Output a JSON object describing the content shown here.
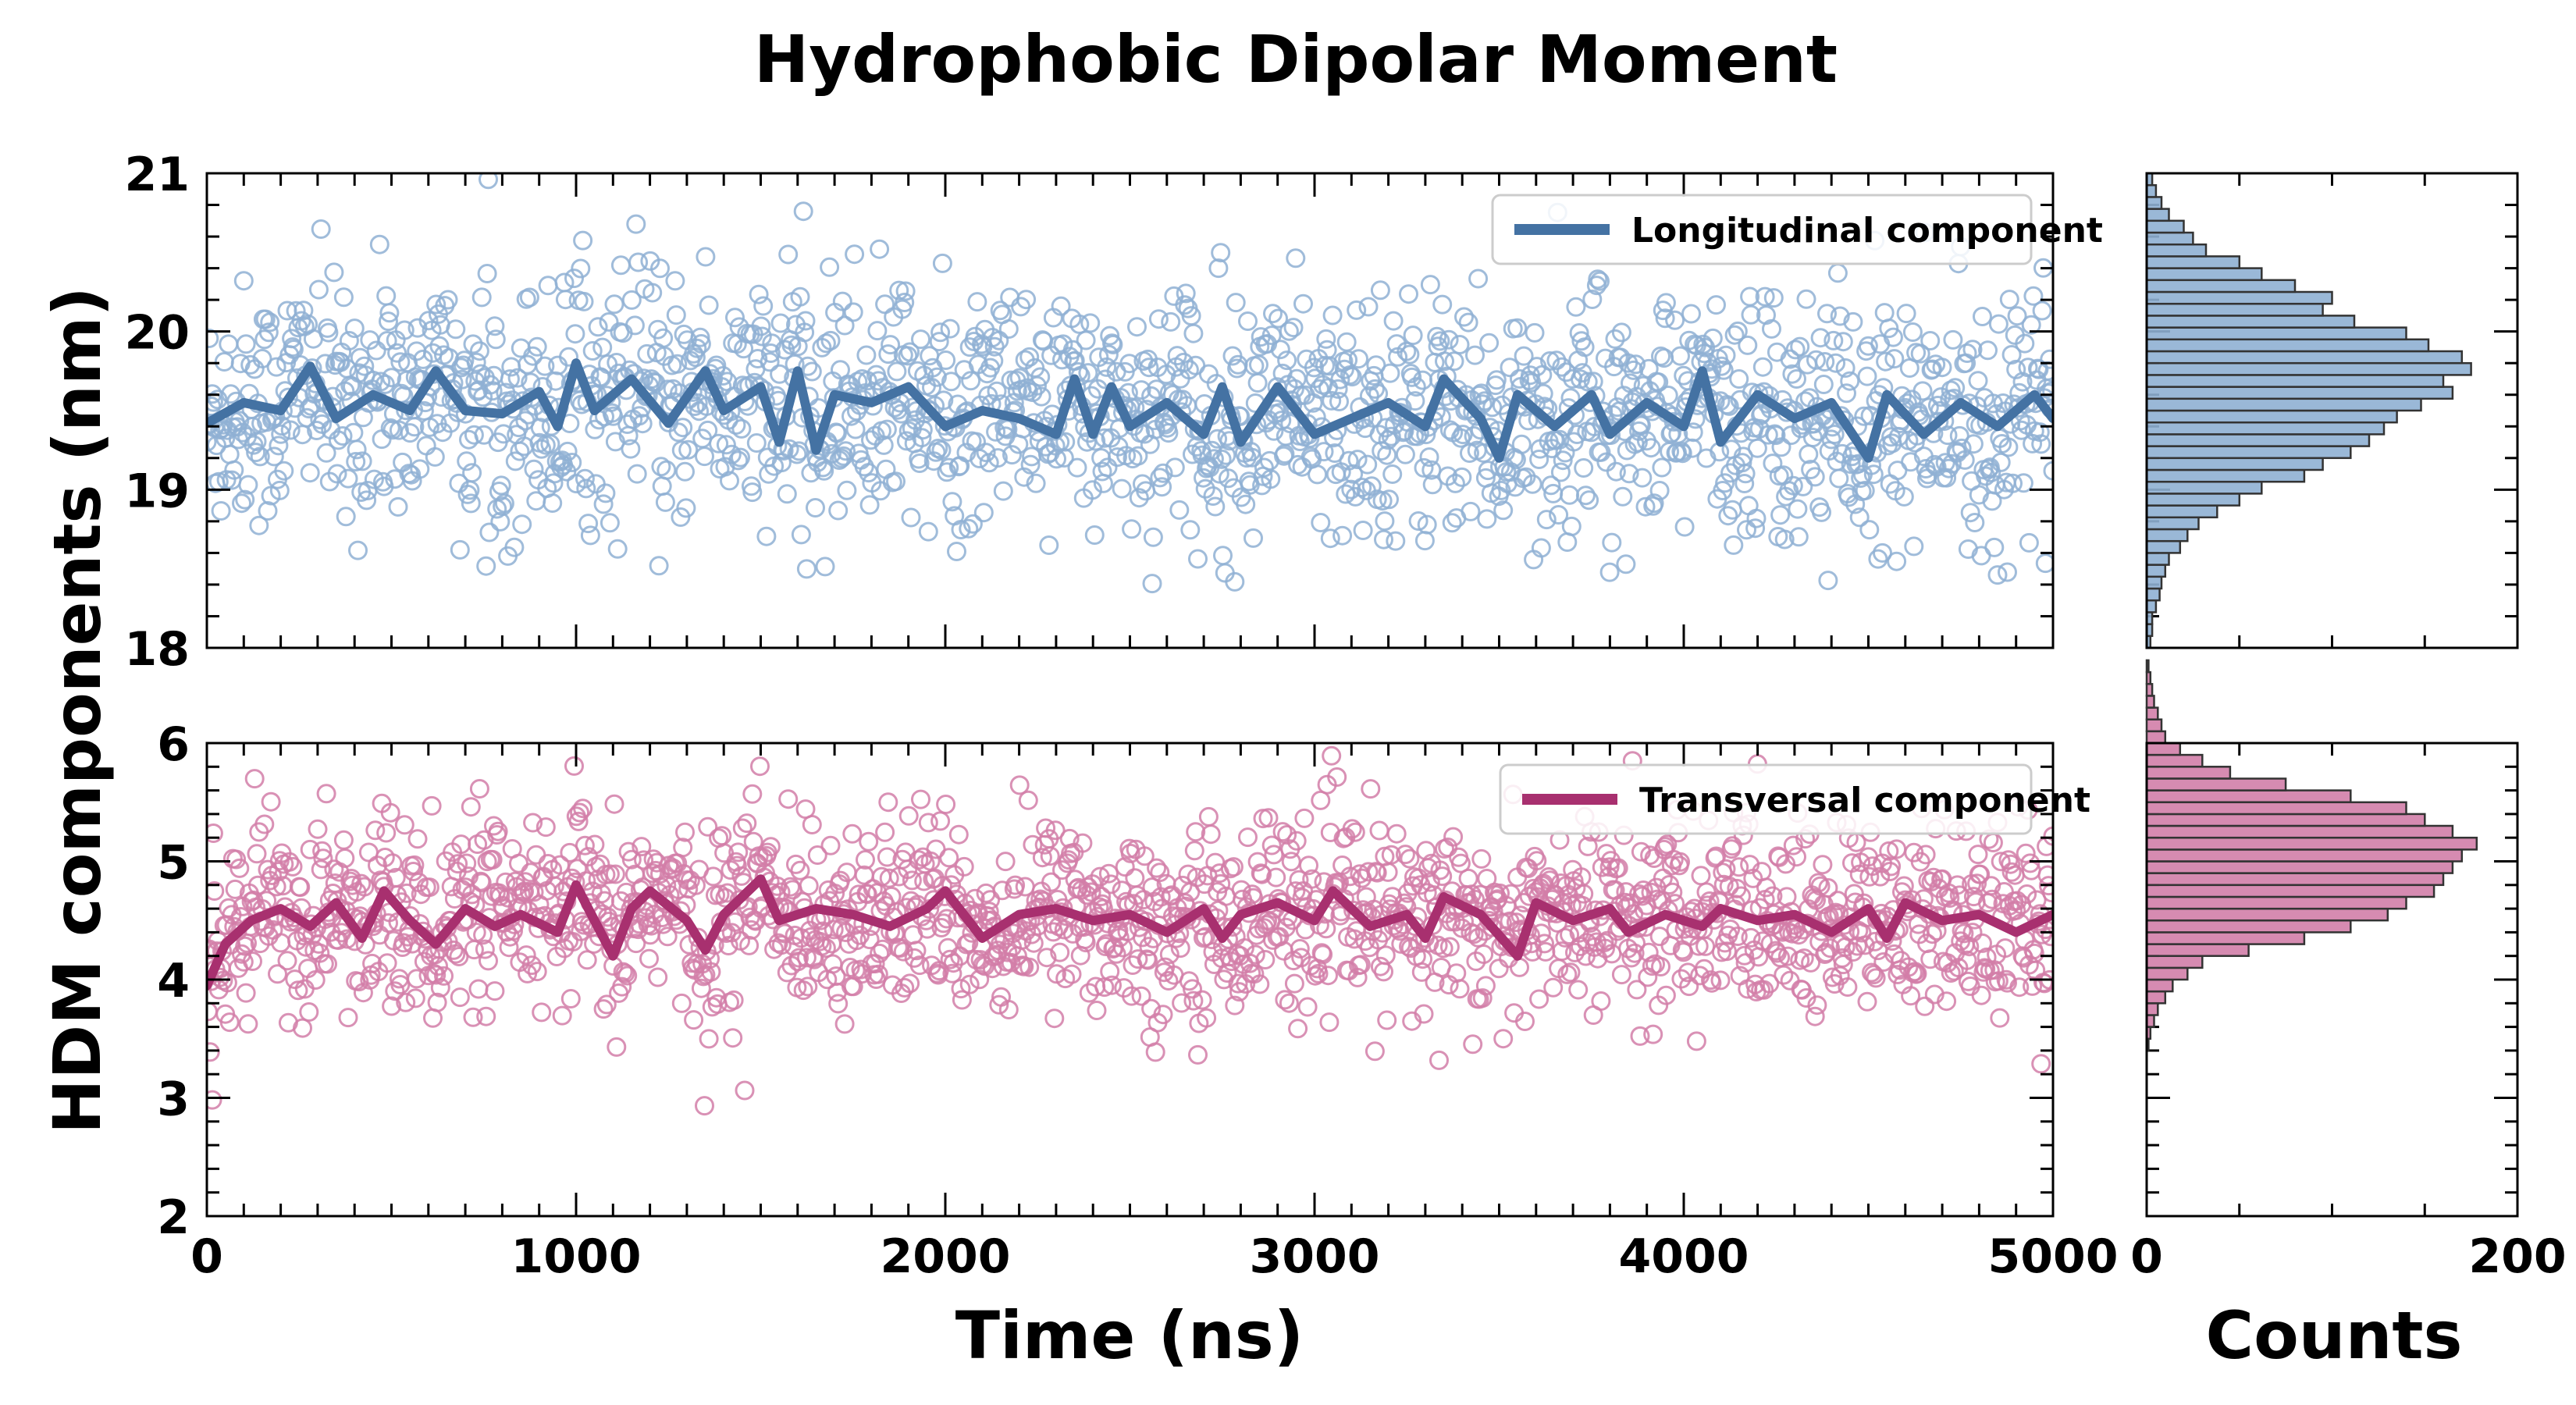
{
  "chart_data": [
    {
      "type": "scatter",
      "panel": "top",
      "title": "Hydrophobic Dipolar Moment",
      "xlabel": "Time (ns)",
      "ylabel": "HDM components (nm)",
      "xlim": [
        0,
        5000
      ],
      "ylim": [
        18,
        21
      ],
      "x_ticks": [
        "0",
        "1000",
        "2000",
        "3000",
        "4000",
        "5000"
      ],
      "y_ticks": [
        "18",
        "19",
        "20",
        "21"
      ],
      "show_x_ticklabels": false,
      "legend_position": "top-right",
      "series": [
        {
          "name": "Longitudinal component",
          "kind": "scatter+running-average",
          "color": "#4472a3",
          "marker_color": "#8fb0d3",
          "x_range": [
            0,
            5000
          ],
          "n_points": 1700,
          "mean": 19.52,
          "std": 0.38,
          "smoothed": [
            [
              0,
              19.42
            ],
            [
              100,
              19.55
            ],
            [
              200,
              19.5
            ],
            [
              280,
              19.78
            ],
            [
              350,
              19.45
            ],
            [
              450,
              19.6
            ],
            [
              550,
              19.5
            ],
            [
              620,
              19.75
            ],
            [
              700,
              19.5
            ],
            [
              800,
              19.48
            ],
            [
              900,
              19.62
            ],
            [
              950,
              19.4
            ],
            [
              1000,
              19.8
            ],
            [
              1050,
              19.5
            ],
            [
              1150,
              19.7
            ],
            [
              1250,
              19.42
            ],
            [
              1350,
              19.75
            ],
            [
              1400,
              19.5
            ],
            [
              1500,
              19.65
            ],
            [
              1550,
              19.3
            ],
            [
              1600,
              19.75
            ],
            [
              1650,
              19.25
            ],
            [
              1700,
              19.6
            ],
            [
              1800,
              19.55
            ],
            [
              1900,
              19.65
            ],
            [
              2000,
              19.4
            ],
            [
              2100,
              19.5
            ],
            [
              2200,
              19.45
            ],
            [
              2300,
              19.35
            ],
            [
              2350,
              19.7
            ],
            [
              2400,
              19.35
            ],
            [
              2450,
              19.65
            ],
            [
              2500,
              19.4
            ],
            [
              2600,
              19.55
            ],
            [
              2700,
              19.35
            ],
            [
              2750,
              19.65
            ],
            [
              2800,
              19.3
            ],
            [
              2900,
              19.65
            ],
            [
              3000,
              19.35
            ],
            [
              3100,
              19.45
            ],
            [
              3200,
              19.55
            ],
            [
              3300,
              19.4
            ],
            [
              3350,
              19.7
            ],
            [
              3450,
              19.45
            ],
            [
              3500,
              19.2
            ],
            [
              3550,
              19.6
            ],
            [
              3650,
              19.4
            ],
            [
              3750,
              19.6
            ],
            [
              3800,
              19.35
            ],
            [
              3900,
              19.55
            ],
            [
              4000,
              19.4
            ],
            [
              4050,
              19.75
            ],
            [
              4100,
              19.3
            ],
            [
              4200,
              19.6
            ],
            [
              4300,
              19.45
            ],
            [
              4400,
              19.55
            ],
            [
              4500,
              19.2
            ],
            [
              4550,
              19.6
            ],
            [
              4650,
              19.35
            ],
            [
              4750,
              19.55
            ],
            [
              4850,
              19.4
            ],
            [
              4950,
              19.6
            ],
            [
              5000,
              19.45
            ]
          ]
        }
      ],
      "histogram": {
        "xlabel": "Counts",
        "xlim": [
          0,
          200
        ],
        "x_ticks": [
          "0",
          "200"
        ],
        "bin_edges_start": 18.0,
        "bin_width": 0.075,
        "counts": [
          2,
          3,
          3,
          5,
          7,
          8,
          10,
          12,
          18,
          22,
          28,
          38,
          50,
          62,
          85,
          95,
          110,
          120,
          128,
          135,
          148,
          165,
          160,
          175,
          170,
          152,
          140,
          112,
          95,
          100,
          80,
          62,
          50,
          32,
          25,
          20,
          12,
          8,
          5,
          3
        ]
      }
    },
    {
      "type": "scatter",
      "panel": "bottom",
      "xlabel": "Time (ns)",
      "ylabel": "HDM components (nm)",
      "xlim": [
        0,
        5000
      ],
      "ylim": [
        2,
        6
      ],
      "x_ticks": [
        "0",
        "1000",
        "2000",
        "3000",
        "4000",
        "5000"
      ],
      "y_ticks": [
        "2",
        "3",
        "4",
        "5",
        "6"
      ],
      "legend_position": "top-right",
      "series": [
        {
          "name": "Transversal component",
          "kind": "scatter+running-average",
          "color": "#a8306f",
          "marker_color": "#d27ea8",
          "x_range": [
            0,
            5000
          ],
          "n_points": 1700,
          "mean": 4.52,
          "std": 0.4,
          "smoothed": [
            [
              0,
              3.95
            ],
            [
              50,
              4.3
            ],
            [
              120,
              4.5
            ],
            [
              200,
              4.6
            ],
            [
              280,
              4.45
            ],
            [
              350,
              4.65
            ],
            [
              420,
              4.35
            ],
            [
              480,
              4.75
            ],
            [
              550,
              4.5
            ],
            [
              620,
              4.3
            ],
            [
              700,
              4.6
            ],
            [
              780,
              4.45
            ],
            [
              850,
              4.55
            ],
            [
              950,
              4.4
            ],
            [
              1000,
              4.8
            ],
            [
              1050,
              4.5
            ],
            [
              1100,
              4.2
            ],
            [
              1150,
              4.6
            ],
            [
              1200,
              4.75
            ],
            [
              1300,
              4.5
            ],
            [
              1350,
              4.25
            ],
            [
              1400,
              4.55
            ],
            [
              1500,
              4.85
            ],
            [
              1550,
              4.5
            ],
            [
              1650,
              4.6
            ],
            [
              1750,
              4.55
            ],
            [
              1850,
              4.45
            ],
            [
              1950,
              4.6
            ],
            [
              2000,
              4.75
            ],
            [
              2100,
              4.35
            ],
            [
              2200,
              4.55
            ],
            [
              2300,
              4.6
            ],
            [
              2400,
              4.5
            ],
            [
              2500,
              4.55
            ],
            [
              2600,
              4.4
            ],
            [
              2700,
              4.6
            ],
            [
              2750,
              4.35
            ],
            [
              2800,
              4.55
            ],
            [
              2900,
              4.65
            ],
            [
              3000,
              4.5
            ],
            [
              3050,
              4.75
            ],
            [
              3100,
              4.6
            ],
            [
              3150,
              4.45
            ],
            [
              3250,
              4.55
            ],
            [
              3300,
              4.35
            ],
            [
              3350,
              4.7
            ],
            [
              3450,
              4.55
            ],
            [
              3550,
              4.2
            ],
            [
              3600,
              4.65
            ],
            [
              3700,
              4.5
            ],
            [
              3800,
              4.6
            ],
            [
              3850,
              4.4
            ],
            [
              3950,
              4.55
            ],
            [
              4050,
              4.45
            ],
            [
              4100,
              4.6
            ],
            [
              4200,
              4.5
            ],
            [
              4300,
              4.55
            ],
            [
              4400,
              4.4
            ],
            [
              4500,
              4.6
            ],
            [
              4550,
              4.35
            ],
            [
              4600,
              4.65
            ],
            [
              4700,
              4.5
            ],
            [
              4800,
              4.55
            ],
            [
              4900,
              4.4
            ],
            [
              5000,
              4.55
            ]
          ]
        }
      ],
      "histogram": {
        "xlabel": "Counts",
        "xlim": [
          0,
          200
        ],
        "x_ticks": [
          "0",
          "200"
        ],
        "bin_edges_start": 2.0,
        "bin_width": 0.1,
        "counts": [
          0,
          0,
          0,
          0,
          0,
          0,
          0,
          0,
          0,
          0,
          0,
          0,
          0,
          0,
          1,
          2,
          4,
          6,
          10,
          14,
          22,
          30,
          55,
          85,
          110,
          130,
          140,
          155,
          160,
          165,
          170,
          178,
          165,
          150,
          140,
          110,
          75,
          45,
          30,
          18,
          10,
          8,
          6,
          4,
          3,
          2,
          1,
          0,
          0,
          0
        ]
      }
    }
  ]
}
